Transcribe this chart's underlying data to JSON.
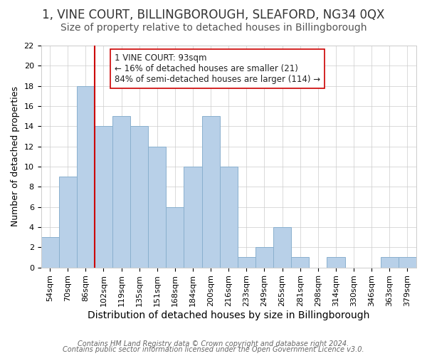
{
  "title": "1, VINE COURT, BILLINGBOROUGH, SLEAFORD, NG34 0QX",
  "subtitle": "Size of property relative to detached houses in Billingborough",
  "xlabel": "Distribution of detached houses by size in Billingborough",
  "ylabel": "Number of detached properties",
  "footer_line1": "Contains HM Land Registry data © Crown copyright and database right 2024.",
  "footer_line2": "Contains public sector information licensed under the Open Government Licence v3.0.",
  "bin_labels": [
    "54sqm",
    "70sqm",
    "86sqm",
    "102sqm",
    "119sqm",
    "135sqm",
    "151sqm",
    "168sqm",
    "184sqm",
    "200sqm",
    "216sqm",
    "233sqm",
    "249sqm",
    "265sqm",
    "281sqm",
    "298sqm",
    "314sqm",
    "330sqm",
    "346sqm",
    "363sqm",
    "379sqm"
  ],
  "bar_values": [
    3,
    9,
    18,
    14,
    15,
    14,
    12,
    6,
    10,
    15,
    10,
    1,
    2,
    4,
    1,
    0,
    1,
    0,
    0,
    1,
    1
  ],
  "bar_color": "#b8d0e8",
  "bar_edge_color": "#8ab0ce",
  "vline_color": "#cc0000",
  "annotation_box_text": "1 VINE COURT: 93sqm\n← 16% of detached houses are smaller (21)\n84% of semi-detached houses are larger (114) →",
  "annotation_box_edge_color": "#cc0000",
  "annotation_box_face_color": "#ffffff",
  "ylim": [
    0,
    22
  ],
  "yticks": [
    0,
    2,
    4,
    6,
    8,
    10,
    12,
    14,
    16,
    18,
    20,
    22
  ],
  "title_fontsize": 12,
  "subtitle_fontsize": 10,
  "xlabel_fontsize": 10,
  "ylabel_fontsize": 9,
  "tick_fontsize": 8,
  "annotation_fontsize": 8.5,
  "footer_fontsize": 7
}
